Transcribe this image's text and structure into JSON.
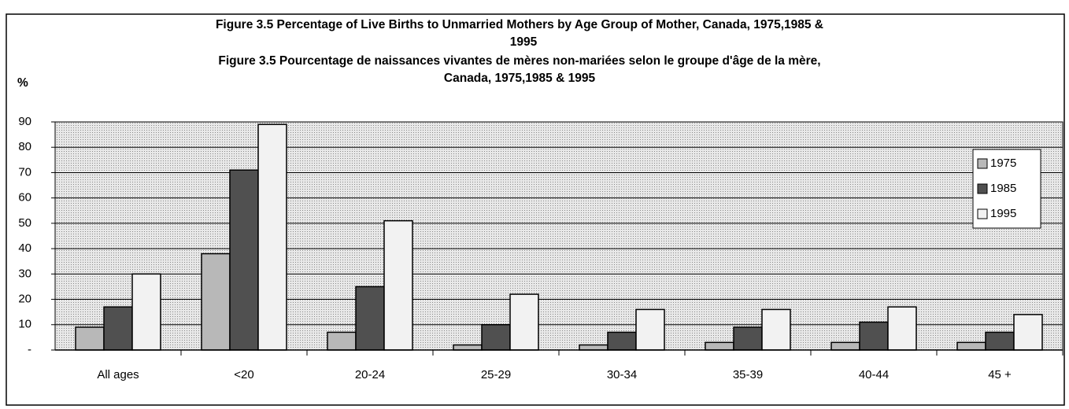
{
  "chart_data": {
    "type": "bar",
    "title_lines": [
      "Figure 3.5 Percentage of Live Births to Unmarried Mothers by Age Group of Mother, Canada, 1975,1985 &",
      "1995"
    ],
    "subtitle_lines": [
      "Figure 3.5 Pourcentage de naissances vivantes de mères non-mariées selon le groupe d'âge de la mère,",
      "Canada, 1975,1985 & 1995"
    ],
    "y_label": "%",
    "categories": [
      "All ages",
      "<20",
      "20-24",
      "25-29",
      "30-34",
      "35-39",
      "40-44",
      "45 +"
    ],
    "series": [
      {
        "name": "1975",
        "color": "#b8b8b8",
        "values": [
          9,
          38,
          7,
          2,
          2,
          3,
          3,
          3
        ]
      },
      {
        "name": "1985",
        "color": "#505050",
        "values": [
          17,
          71,
          25,
          10,
          7,
          9,
          11,
          7
        ]
      },
      {
        "name": "1995",
        "color": "#f2f2f2",
        "values": [
          30,
          89,
          51,
          22,
          16,
          16,
          17,
          14
        ]
      }
    ],
    "ylim": [
      0,
      90
    ],
    "yticks": [
      {
        "value": 0,
        "label": "-"
      },
      10,
      20,
      30,
      40,
      50,
      60,
      70,
      80,
      90
    ],
    "grid": true,
    "legend": "right"
  }
}
